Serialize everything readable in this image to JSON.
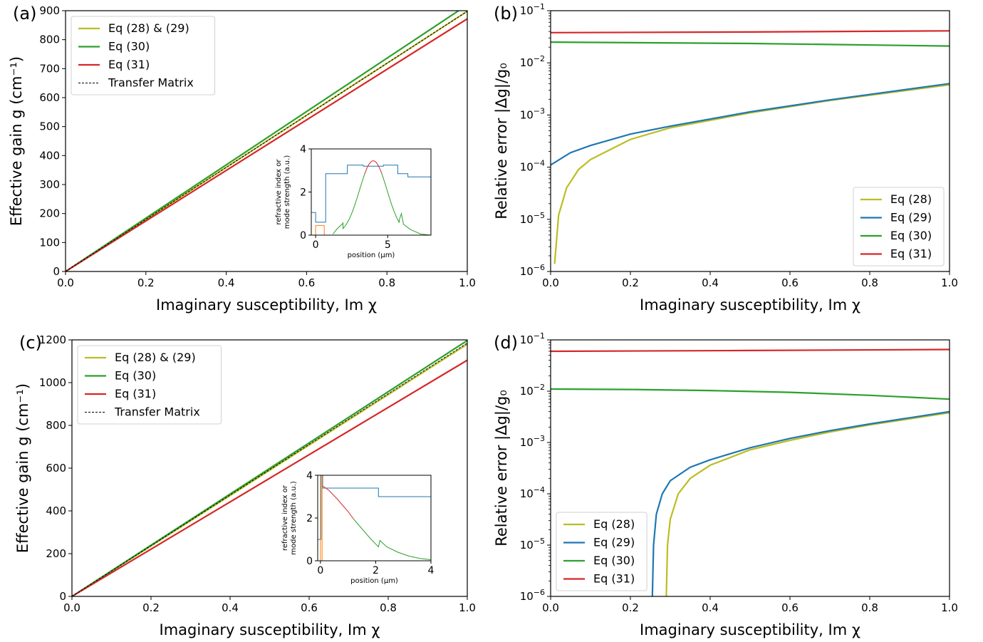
{
  "colors": {
    "eq28": "#bcbd22",
    "eq29": "#1f77b4",
    "eq30": "#2ca02c",
    "eq31": "#d62728",
    "tm": "#000000",
    "orange": "#ff7f0e"
  },
  "chart_data": [
    {
      "panel": "(a)",
      "type": "line",
      "xlabel": "Imaginary susceptibility, Im χ",
      "ylabel": "Effective gain g (cm⁻¹)",
      "xlim": [
        0,
        1
      ],
      "ylim": [
        0,
        900
      ],
      "xticks": [
        "0.0",
        "0.2",
        "0.4",
        "0.6",
        "0.8",
        "1.0"
      ],
      "yticks": [
        "0",
        "100",
        "200",
        "300",
        "400",
        "500",
        "600",
        "700",
        "800",
        "900"
      ],
      "legend_position": "upper-left",
      "series": [
        {
          "name": "Eq (28) & (29)",
          "color": "eq28",
          "x": [
            0,
            1
          ],
          "y": [
            0,
            898
          ]
        },
        {
          "name": "Eq (30)",
          "color": "eq30",
          "x": [
            0,
            1
          ],
          "y": [
            0,
            920
          ]
        },
        {
          "name": "Eq (31)",
          "color": "eq31",
          "x": [
            0,
            1
          ],
          "y": [
            0,
            872
          ]
        },
        {
          "name": "Transfer Matrix",
          "color": "tm",
          "dashed": true,
          "x": [
            0,
            1
          ],
          "y": [
            0,
            898
          ]
        }
      ],
      "inset": {
        "xlabel": "position (μm)",
        "ylabel_lines": [
          "refractive index or",
          "mode strength (a.u.)"
        ],
        "xlim": [
          -0.3,
          8
        ],
        "ylim": [
          0,
          4
        ],
        "xticks": [
          "0",
          "5"
        ],
        "yticks": [
          "0",
          "2",
          "4"
        ]
      }
    },
    {
      "panel": "(b)",
      "type": "line",
      "xlabel": "Imaginary susceptibility, Im χ",
      "ylabel": "Relative error |Δg|/g₀",
      "yscale": "log",
      "xlim": [
        0,
        1
      ],
      "ylim": [
        1e-06,
        0.1
      ],
      "xticks": [
        "0.0",
        "0.2",
        "0.4",
        "0.6",
        "0.8",
        "1.0"
      ],
      "yticks": [
        {
          "base": "10",
          "exp": "−1"
        },
        {
          "base": "10",
          "exp": "−2"
        },
        {
          "base": "10",
          "exp": "−3"
        },
        {
          "base": "10",
          "exp": "−4"
        },
        {
          "base": "10",
          "exp": "−5"
        },
        {
          "base": "10",
          "exp": "−6"
        }
      ],
      "legend_position": "lower-right",
      "series": [
        {
          "name": "Eq (28)",
          "color": "eq28",
          "x": [
            0.01,
            0.02,
            0.04,
            0.07,
            0.1,
            0.2,
            0.3,
            0.5,
            0.7,
            1.0
          ],
          "y": [
            1.4e-06,
            1.2e-05,
            4e-05,
            9e-05,
            0.00014,
            0.00034,
            0.00057,
            0.0011,
            0.0019,
            0.0038
          ]
        },
        {
          "name": "Eq (29)",
          "color": "eq29",
          "x": [
            0,
            0.05,
            0.1,
            0.2,
            0.3,
            0.5,
            0.7,
            1.0
          ],
          "y": [
            0.00011,
            0.00019,
            0.00026,
            0.00043,
            0.00061,
            0.00115,
            0.00195,
            0.004
          ]
        },
        {
          "name": "Eq (30)",
          "color": "eq30",
          "x": [
            0,
            0.5,
            1.0
          ],
          "y": [
            0.025,
            0.0235,
            0.021
          ]
        },
        {
          "name": "Eq (31)",
          "color": "eq31",
          "x": [
            0,
            0.5,
            1.0
          ],
          "y": [
            0.038,
            0.039,
            0.041
          ]
        }
      ]
    },
    {
      "panel": "(c)",
      "type": "line",
      "xlabel": "Imaginary susceptibility, Im χ",
      "ylabel": "Effective gain g (cm⁻¹)",
      "xlim": [
        0,
        1
      ],
      "ylim": [
        0,
        1200
      ],
      "xticks": [
        "0.0",
        "0.2",
        "0.4",
        "0.6",
        "0.8",
        "1.0"
      ],
      "yticks": [
        "0",
        "200",
        "400",
        "600",
        "800",
        "1000",
        "1200"
      ],
      "legend_position": "upper-left",
      "series": [
        {
          "name": "Eq (28) & (29)",
          "color": "eq28",
          "x": [
            0,
            1
          ],
          "y": [
            0,
            1180
          ]
        },
        {
          "name": "Eq (30)",
          "color": "eq30",
          "x": [
            0,
            1
          ],
          "y": [
            0,
            1197
          ]
        },
        {
          "name": "Eq (31)",
          "color": "eq31",
          "x": [
            0,
            1
          ],
          "y": [
            0,
            1105
          ]
        },
        {
          "name": "Transfer Matrix",
          "color": "tm",
          "dashed": true,
          "x": [
            0,
            1
          ],
          "y": [
            0,
            1185
          ]
        }
      ],
      "inset": {
        "xlabel": "position (μm)",
        "ylabel_lines": [
          "refractive index or",
          "mode strength (a.u.)"
        ],
        "xlim": [
          -0.1,
          4
        ],
        "ylim": [
          0,
          4
        ],
        "xticks": [
          "0",
          "2",
          "4"
        ],
        "yticks": [
          "0",
          "2",
          "4"
        ]
      }
    },
    {
      "panel": "(d)",
      "type": "line",
      "xlabel": "Imaginary susceptibility, Im χ",
      "ylabel": "Relative error |Δg|/g₀",
      "yscale": "log",
      "xlim": [
        0,
        1
      ],
      "ylim": [
        1e-06,
        0.1
      ],
      "xticks": [
        "0.0",
        "0.2",
        "0.4",
        "0.6",
        "0.8",
        "1.0"
      ],
      "yticks": [
        {
          "base": "10",
          "exp": "−1"
        },
        {
          "base": "10",
          "exp": "−2"
        },
        {
          "base": "10",
          "exp": "−3"
        },
        {
          "base": "10",
          "exp": "−4"
        },
        {
          "base": "10",
          "exp": "−5"
        },
        {
          "base": "10",
          "exp": "−6"
        }
      ],
      "legend_position": "lower-left",
      "series": [
        {
          "name": "Eq (28)",
          "color": "eq28",
          "x": [
            0.29,
            0.293,
            0.3,
            0.32,
            0.35,
            0.4,
            0.5,
            0.6,
            0.7,
            0.8,
            1.0
          ],
          "y": [
            1e-06,
            1e-05,
            3.2e-05,
            0.0001,
            0.0002,
            0.00036,
            0.00072,
            0.0011,
            0.0016,
            0.0022,
            0.0038
          ]
        },
        {
          "name": "Eq (29)",
          "color": "eq29",
          "x": [
            0.255,
            0.258,
            0.265,
            0.28,
            0.3,
            0.35,
            0.4,
            0.5,
            0.6,
            0.7,
            0.8,
            1.0
          ],
          "y": [
            1e-06,
            1e-05,
            4e-05,
            0.0001,
            0.00018,
            0.00033,
            0.00046,
            0.00079,
            0.0012,
            0.0017,
            0.0023,
            0.004
          ]
        },
        {
          "name": "Eq (30)",
          "color": "eq30",
          "x": [
            0,
            0.2,
            0.4,
            0.6,
            0.8,
            1.0
          ],
          "y": [
            0.011,
            0.0108,
            0.0103,
            0.0095,
            0.0083,
            0.007
          ]
        },
        {
          "name": "Eq (31)",
          "color": "eq31",
          "x": [
            0,
            0.5,
            1.0
          ],
          "y": [
            0.06,
            0.062,
            0.065
          ]
        }
      ]
    }
  ]
}
